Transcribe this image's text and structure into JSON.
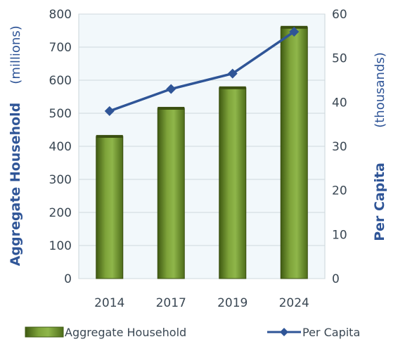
{
  "chart_data": {
    "type": "bar",
    "categories": [
      "2014",
      "2017",
      "2019",
      "2024"
    ],
    "series": [
      {
        "name": "Aggregate Household",
        "type": "bar",
        "axis": "left",
        "values": [
          430,
          515,
          577,
          760
        ],
        "color": "#6a8f26"
      },
      {
        "name": "Per Capita",
        "type": "line",
        "axis": "right",
        "values": [
          38,
          43,
          46.5,
          56
        ],
        "color": "#2f5597"
      }
    ],
    "y_left": {
      "label": "Aggregate Household",
      "unit": "(millions)",
      "ylim": [
        0,
        800
      ],
      "ticks": [
        "0",
        "100",
        "200",
        "300",
        "400",
        "500",
        "600",
        "700",
        "800"
      ]
    },
    "y_right": {
      "label": "Per Capita",
      "unit": "(thousands)",
      "ylim": [
        0,
        60
      ],
      "ticks": [
        "0",
        "10",
        "20",
        "30",
        "40",
        "50",
        "60"
      ]
    },
    "grid": true,
    "legend": {
      "placement": "bottom",
      "items": [
        "Aggregate Household",
        "Per Capita"
      ]
    }
  }
}
